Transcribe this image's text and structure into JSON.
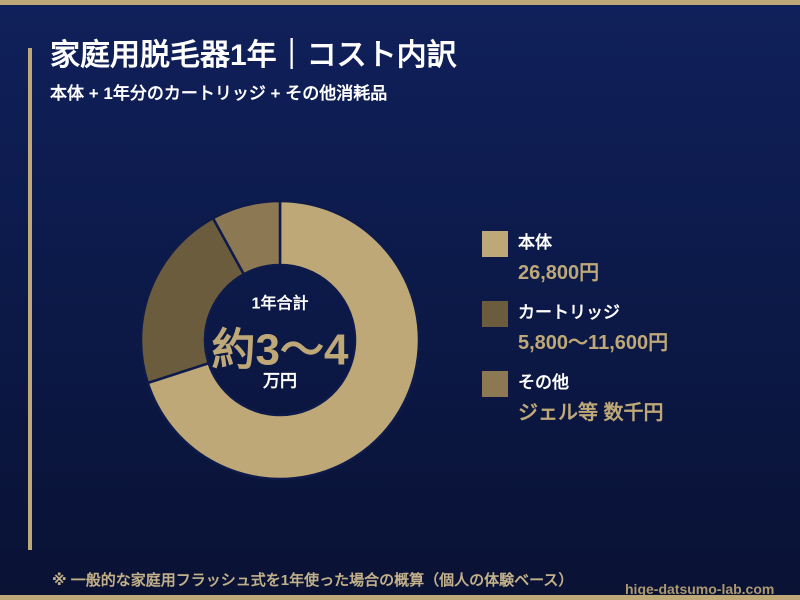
{
  "theme": {
    "background_top": "#10205a",
    "background_bottom": "#0a1234",
    "accent": "#bea878",
    "text": "#ffffff",
    "muted": "#c2b08a",
    "separator": "#0d1a4a"
  },
  "chart_data": {
    "type": "pie",
    "donut": true,
    "title": "家庭用脱毛器1年｜コスト内訳",
    "subtitle": "本体 + 1年分のカートリッジ + その他消耗品",
    "categories": [
      "本体",
      "カートリッジ",
      "その他"
    ],
    "values": [
      70,
      22,
      8
    ],
    "value_labels": [
      "26,800円",
      "5,800～11,600円",
      "ジェル等 数千円"
    ],
    "colors": [
      "#bea878",
      "#6b5c3e",
      "#8c7853"
    ],
    "center_label": {
      "caption": "1年合計",
      "value": "約3～4",
      "unit": "万円"
    },
    "legend_position": "right"
  },
  "footnote": "※ 一般的な家庭用フラッシュ式を1年使った場合の概算（個人の体験ベース）",
  "watermark": "hige-datsumo-lab.com"
}
